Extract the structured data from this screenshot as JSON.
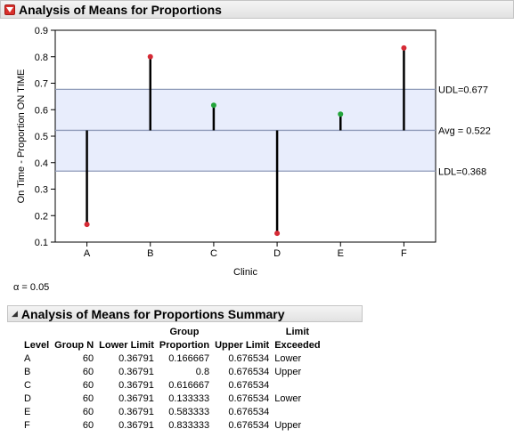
{
  "header": {
    "title": "Analysis of Means for Proportions"
  },
  "colors": {
    "exceeded": "#d62a35",
    "within": "#22a43a",
    "band": "#e8edfc",
    "limit_line": "#8e9ab8"
  },
  "chart_data": {
    "type": "scatter",
    "xlabel": "Clinic",
    "ylabel": "On Time - Proportion ON TIME",
    "ylim": [
      0.1,
      0.9
    ],
    "yticks": [
      "0.1",
      "0.2",
      "0.3",
      "0.4",
      "0.5",
      "0.6",
      "0.7",
      "0.8",
      "0.9"
    ],
    "categories": [
      "A",
      "B",
      "C",
      "D",
      "E",
      "F"
    ],
    "values": [
      0.166667,
      0.8,
      0.616667,
      0.133333,
      0.583333,
      0.833333
    ],
    "point_status": [
      "exceeded",
      "exceeded",
      "within",
      "exceeded",
      "within",
      "exceeded"
    ],
    "center": 0.522,
    "udl": 0.677,
    "ldl": 0.368,
    "labels": {
      "udl": "UDL=0.677",
      "avg": "Avg = 0.522",
      "ldl": "LDL=0.368"
    }
  },
  "alpha_text": "α = 0.05",
  "summary": {
    "title": "Analysis of Means for Proportions Summary",
    "headers": [
      {
        "top": "",
        "bottom": "Level"
      },
      {
        "top": "",
        "bottom": "Group N"
      },
      {
        "top": "",
        "bottom": "Lower Limit"
      },
      {
        "top": "Group",
        "bottom": "Proportion"
      },
      {
        "top": "",
        "bottom": "Upper Limit"
      },
      {
        "top": "Limit",
        "bottom": "Exceeded"
      }
    ],
    "rows": [
      [
        "A",
        "60",
        "0.36791",
        "0.166667",
        "0.676534",
        "Lower"
      ],
      [
        "B",
        "60",
        "0.36791",
        "0.8",
        "0.676534",
        "Upper"
      ],
      [
        "C",
        "60",
        "0.36791",
        "0.616667",
        "0.676534",
        ""
      ],
      [
        "D",
        "60",
        "0.36791",
        "0.133333",
        "0.676534",
        "Lower"
      ],
      [
        "E",
        "60",
        "0.36791",
        "0.583333",
        "0.676534",
        ""
      ],
      [
        "F",
        "60",
        "0.36791",
        "0.833333",
        "0.676534",
        "Upper"
      ]
    ]
  }
}
